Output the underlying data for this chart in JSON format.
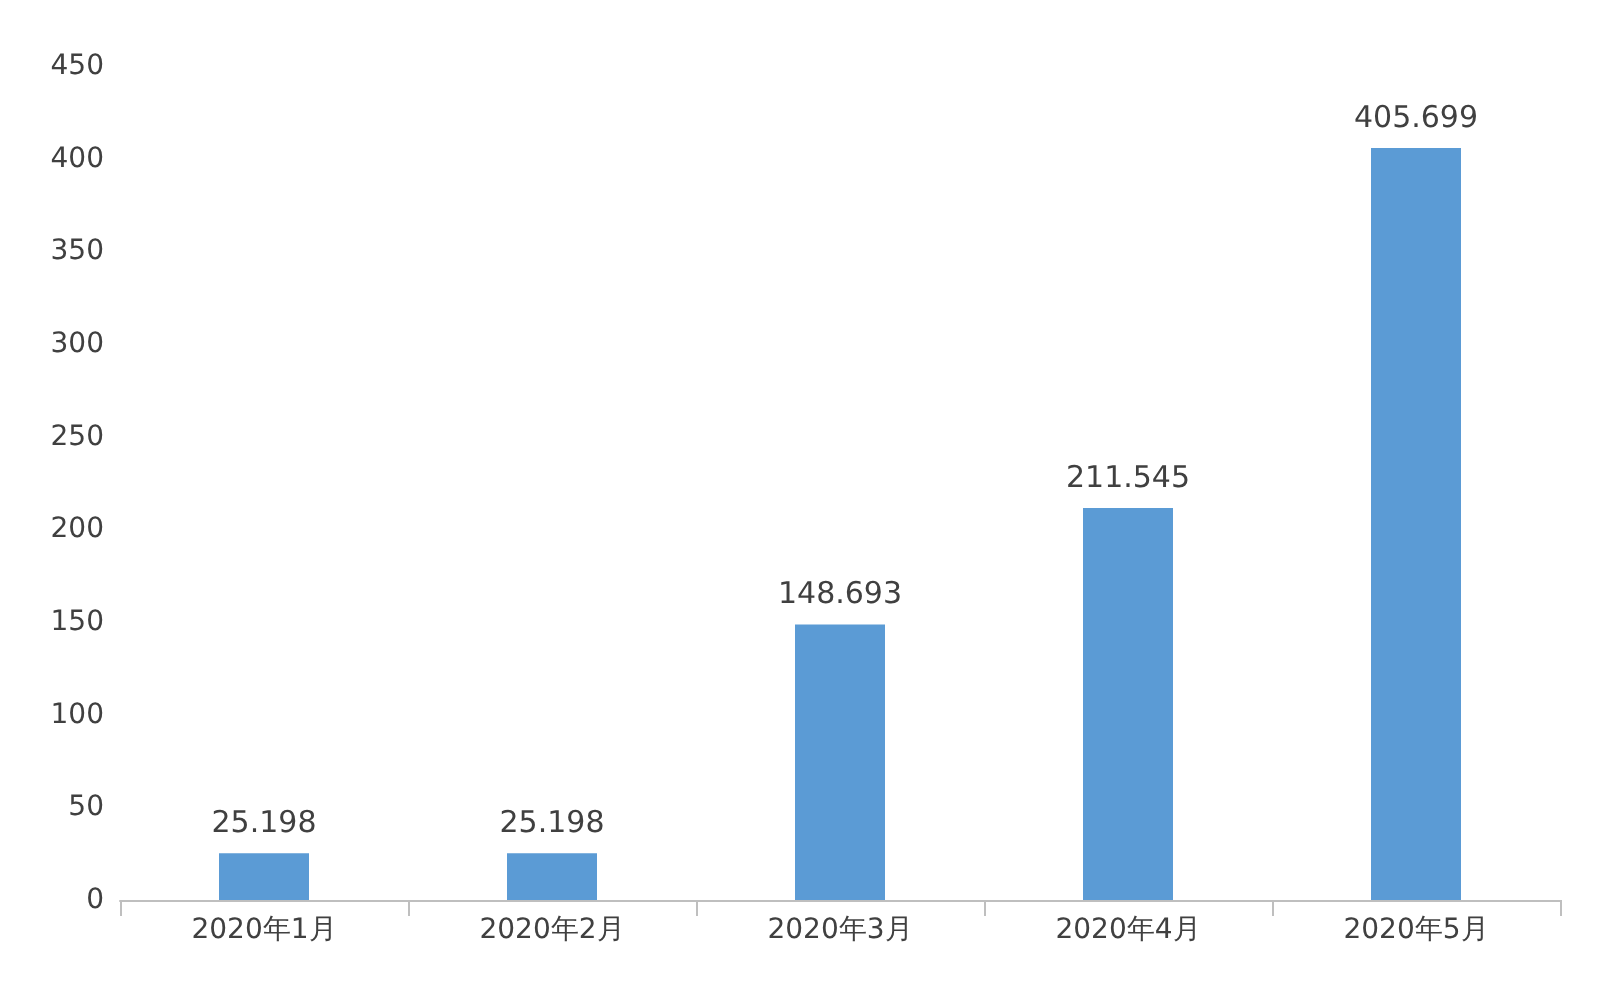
{
  "chart_data": {
    "type": "bar",
    "categories": [
      "2020年1月",
      "2020年2月",
      "2020年3月",
      "2020年4月",
      "2020年5月"
    ],
    "values": [
      25.198,
      25.198,
      148.693,
      211.545,
      405.699
    ],
    "color": "#5b9bd5",
    "ylim": [
      0,
      450
    ],
    "yticks": [
      0,
      50,
      100,
      150,
      200,
      250,
      300,
      350,
      400,
      450
    ],
    "grid": false,
    "data_labels": true
  }
}
